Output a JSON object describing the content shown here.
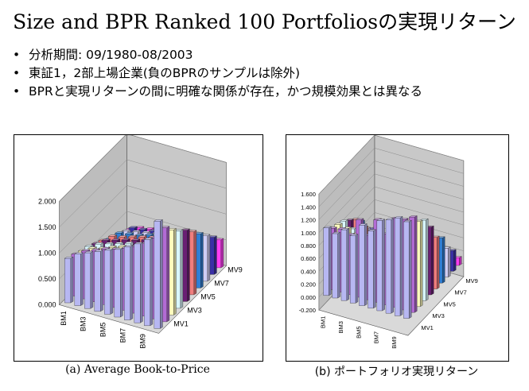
{
  "title": "Size and BPR Ranked 100 Portfoliosの実現リターン",
  "bullets": [
    "分析期間: 09/1980-08/2003",
    "東証1，2部上場企業(負のBPRのサンプルは除外)",
    "BPRと実現リターンの間に明確な関係が存在，かつ規模効果とは異なる"
  ],
  "bullet_symbol": "•",
  "colors": [
    "#b7b7f2",
    "#b26bd4",
    "#fffbbe",
    "#d9f7ff",
    "#6a1f74",
    "#f07d7d",
    "#2f7fd6",
    "#cfcdf5",
    "#3a2fa6",
    "#ff3df4"
  ],
  "chart_data": [
    {
      "type": "bar3d",
      "caption": "(a) Average Book-to-Price",
      "bm_labels": [
        "BM1",
        "BM3",
        "BM5",
        "BM7",
        "BM9"
      ],
      "mv_labels": [
        "MV9",
        "MV7",
        "MV5",
        "MV3",
        "MV1"
      ],
      "y_ticks": [
        "2.000",
        "1.500",
        "1.000",
        "0.500",
        "0.000"
      ],
      "ylim": [
        0,
        2.0
      ],
      "values": [
        [
          0.86,
          0.81,
          0.74,
          0.7,
          0.62,
          0.55,
          0.45,
          0.38,
          0.3,
          0.24
        ],
        [
          1.0,
          0.93,
          0.85,
          0.8,
          0.74,
          0.69,
          0.62,
          0.53,
          0.46,
          0.33
        ],
        [
          1.08,
          1.0,
          0.9,
          0.86,
          0.8,
          0.73,
          0.66,
          0.57,
          0.48,
          0.36
        ],
        [
          1.16,
          1.08,
          0.98,
          0.92,
          0.86,
          0.79,
          0.69,
          0.61,
          0.51,
          0.4
        ],
        [
          1.24,
          1.13,
          1.05,
          0.98,
          0.91,
          0.84,
          0.75,
          0.65,
          0.55,
          0.41
        ],
        [
          1.31,
          1.2,
          1.1,
          1.03,
          0.97,
          0.89,
          0.78,
          0.68,
          0.58,
          0.43
        ],
        [
          1.42,
          1.29,
          1.18,
          1.12,
          1.04,
          0.95,
          0.84,
          0.72,
          0.6,
          0.46
        ],
        [
          1.53,
          1.4,
          1.3,
          1.21,
          1.12,
          1.02,
          0.9,
          0.77,
          0.63,
          0.48
        ],
        [
          1.67,
          1.57,
          1.43,
          1.33,
          1.23,
          1.1,
          0.96,
          0.8,
          0.68,
          0.51
        ],
        [
          2.08,
          1.82,
          1.65,
          1.5,
          1.38,
          1.22,
          1.05,
          0.88,
          0.72,
          0.54
        ]
      ]
    },
    {
      "type": "bar3d",
      "caption": "(b) ポートフォリオ実現リターン",
      "bm_labels": [
        "BM1",
        "BM3",
        "BM5",
        "BM7",
        "BM9"
      ],
      "mv_labels": [
        "MV9",
        "MV7",
        "MV5",
        "MV3",
        "MV1"
      ],
      "y_ticks": [
        "1.600",
        "1.400",
        "1.200",
        "1.000",
        "0.800",
        "0.600",
        "0.400",
        "0.200",
        "0.000",
        "-0.200"
      ],
      "ylim": [
        -0.2,
        1.6
      ],
      "values": [
        [
          1.05,
          0.95,
          0.92,
          0.88,
          0.8,
          0.72,
          0.6,
          0.4,
          0.3,
          0.2
        ],
        [
          1.0,
          0.98,
          0.9,
          0.8,
          0.72,
          0.64,
          0.44,
          0.3,
          0.12,
          -0.04
        ],
        [
          1.1,
          0.93,
          0.85,
          0.7,
          0.55,
          0.42,
          0.3,
          0.21,
          0.08,
          -0.05
        ],
        [
          1.05,
          1.2,
          0.82,
          0.62,
          0.45,
          0.36,
          0.2,
          0.12,
          0.05,
          -0.1
        ],
        [
          1.25,
          1.0,
          0.88,
          0.75,
          0.55,
          0.4,
          0.28,
          0.15,
          -0.05,
          -0.12
        ],
        [
          1.2,
          1.28,
          0.9,
          0.75,
          0.58,
          0.48,
          0.35,
          0.2,
          0.05,
          -0.08
        ],
        [
          1.4,
          1.1,
          1.1,
          0.9,
          0.72,
          0.5,
          0.38,
          0.25,
          0.1,
          0.02
        ],
        [
          1.45,
          1.38,
          1.15,
          0.95,
          0.75,
          0.62,
          0.4,
          0.3,
          0.15,
          -0.02
        ],
        [
          1.52,
          1.4,
          1.3,
          1.1,
          0.82,
          0.75,
          0.55,
          0.35,
          0.2,
          0.05
        ],
        [
          1.5,
          1.48,
          1.32,
          1.25,
          1.05,
          0.8,
          0.7,
          0.45,
          0.32,
          0.12
        ]
      ]
    }
  ]
}
